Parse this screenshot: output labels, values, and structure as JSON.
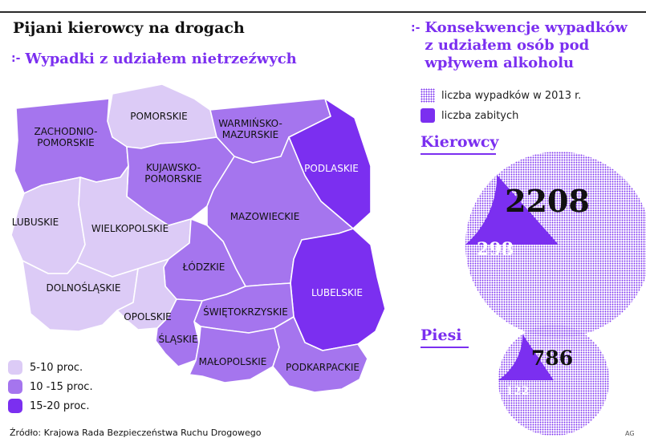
{
  "title": "Pijani kierowcy na drogach",
  "subtitle_marker": ":-",
  "subtitle": "Wypadki z udziałem nietrzeźwych",
  "right_title_marker": ":-",
  "right_title": "Konsekwencje wypadków z udziałem osób pod wpływem alkoholu",
  "legend_map": [
    {
      "label": "5-10 proc.",
      "color": "#dccbf6"
    },
    {
      "label": "10 -15 proc.",
      "color": "#a575ee"
    },
    {
      "label": "15-20 proc.",
      "color": "#7b2ff0"
    }
  ],
  "legend_pies": [
    {
      "label": "liczba wypadków w 2013 r.",
      "style": "dotted"
    },
    {
      "label": "liczba zabitych",
      "style": "solid"
    }
  ],
  "colors": {
    "accent": "#7b2ff0",
    "light": "#dccbf6",
    "medium": "#a575ee",
    "dark": "#7b2ff0"
  },
  "source": "Źródło: Krajowa Rada Bezpieczeństwa Ruchu Drogowego",
  "credit": "AG",
  "chart_data": [
    {
      "type": "map",
      "regions": [
        {
          "name": "POMORSKIE",
          "category": "5-10 proc."
        },
        {
          "name": "ZACHODNIO-POMORSKIE",
          "category": "10 -15 proc."
        },
        {
          "name": "WARMIŃSKO-MAZURSKIE",
          "category": "10 -15 proc."
        },
        {
          "name": "PODLASKIE",
          "category": "15-20 proc."
        },
        {
          "name": "KUJAWSKO-POMORSKIE",
          "category": "10 -15 proc."
        },
        {
          "name": "LUBUSKIE",
          "category": "5-10 proc."
        },
        {
          "name": "WIELKOPOLSKIE",
          "category": "5-10 proc."
        },
        {
          "name": "MAZOWIECKIE",
          "category": "10 -15 proc."
        },
        {
          "name": "ŁÓDZKIE",
          "category": "10 -15 proc."
        },
        {
          "name": "LUBELSKIE",
          "category": "15-20 proc."
        },
        {
          "name": "DOLNOŚLĄSKIE",
          "category": "5-10 proc."
        },
        {
          "name": "OPOLSKIE",
          "category": "5-10 proc."
        },
        {
          "name": "ŚLĄSKIE",
          "category": "10 -15 proc."
        },
        {
          "name": "ŚWIĘTOKRZYSKIE",
          "category": "10 -15 proc."
        },
        {
          "name": "MAŁOPOLSKIE",
          "category": "10 -15 proc."
        },
        {
          "name": "PODKARPACKIE",
          "category": "10 -15 proc."
        }
      ]
    },
    {
      "type": "pie",
      "title": "Kierowcy",
      "categories": [
        "liczba wypadków w 2013 r.",
        "liczba zabitych"
      ],
      "values": [
        2208,
        298
      ]
    },
    {
      "type": "pie",
      "title": "Piesi",
      "categories": [
        "liczba wypadków w 2013 r.",
        "liczba zabitych"
      ],
      "values": [
        786,
        122
      ]
    }
  ]
}
